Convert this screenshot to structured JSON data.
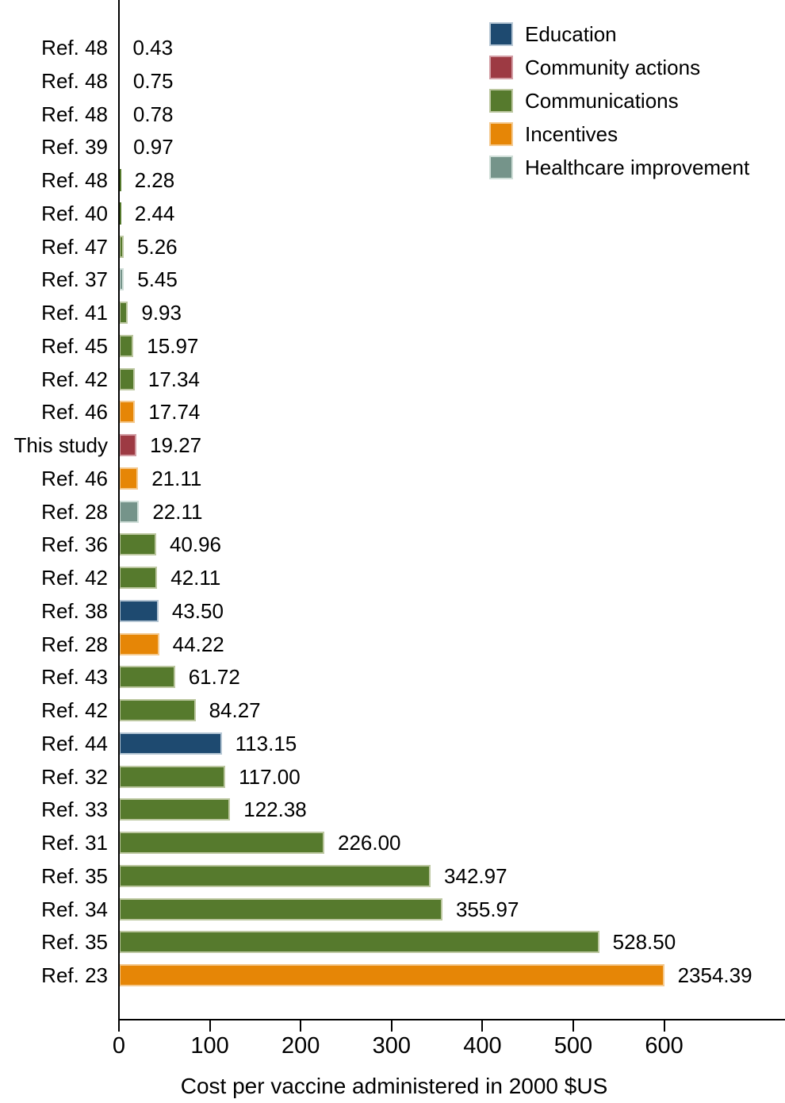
{
  "chart_data": {
    "type": "bar",
    "orientation": "horizontal",
    "title": "",
    "xlabel": "Cost per vaccine administered in 2000 $US",
    "ylabel": "",
    "axis": {
      "ticks": [
        0,
        100,
        200,
        300,
        400,
        500,
        600
      ],
      "xlim_shown": [
        0,
        600
      ],
      "grid": false
    },
    "bar_display_cap": 600,
    "legend": {
      "position": "top-right",
      "order": [
        "Education",
        "Community actions",
        "Communications",
        "Incentives",
        "Healthcare improvement"
      ]
    },
    "categories": {
      "Education": {
        "fill": "#1e4a70",
        "edge": "#b5c6d4"
      },
      "Community actions": {
        "fill": "#9d3a43",
        "edge": "#d29ca3"
      },
      "Communications": {
        "fill": "#567a2d",
        "edge": "#bcc7a0"
      },
      "Incentives": {
        "fill": "#e68606",
        "edge": "#f4c98e"
      },
      "Healthcare improvement": {
        "fill": "#75948a",
        "edge": "#cfded8"
      }
    },
    "bars": [
      {
        "label": "Ref. 48",
        "value": 0.43,
        "display": "0.43",
        "category": "Communications"
      },
      {
        "label": "Ref. 48",
        "value": 0.75,
        "display": "0.75",
        "category": "Communications"
      },
      {
        "label": "Ref. 48",
        "value": 0.78,
        "display": "0.78",
        "category": "Communications"
      },
      {
        "label": "Ref. 39",
        "value": 0.97,
        "display": "0.97",
        "category": "Communications"
      },
      {
        "label": "Ref. 48",
        "value": 2.28,
        "display": "2.28",
        "category": "Communications"
      },
      {
        "label": "Ref. 40",
        "value": 2.44,
        "display": "2.44",
        "category": "Communications"
      },
      {
        "label": "Ref. 47",
        "value": 5.26,
        "display": "5.26",
        "category": "Communications"
      },
      {
        "label": "Ref. 37",
        "value": 5.45,
        "display": "5.45",
        "category": "Healthcare improvement"
      },
      {
        "label": "Ref. 41",
        "value": 9.93,
        "display": "9.93",
        "category": "Communications"
      },
      {
        "label": "Ref. 45",
        "value": 15.97,
        "display": "15.97",
        "category": "Communications"
      },
      {
        "label": "Ref. 42",
        "value": 17.34,
        "display": "17.34",
        "category": "Communications"
      },
      {
        "label": "Ref. 46",
        "value": 17.74,
        "display": "17.74",
        "category": "Incentives"
      },
      {
        "label": "This study",
        "value": 19.27,
        "display": "19.27",
        "category": "Community actions"
      },
      {
        "label": "Ref. 46",
        "value": 21.11,
        "display": "21.11",
        "category": "Incentives"
      },
      {
        "label": "Ref. 28",
        "value": 22.11,
        "display": "22.11",
        "category": "Healthcare improvement"
      },
      {
        "label": "Ref. 36",
        "value": 40.96,
        "display": "40.96",
        "category": "Communications"
      },
      {
        "label": "Ref. 42",
        "value": 42.11,
        "display": "42.11",
        "category": "Communications"
      },
      {
        "label": "Ref. 38",
        "value": 43.5,
        "display": "43.50",
        "category": "Education"
      },
      {
        "label": "Ref. 28",
        "value": 44.22,
        "display": "44.22",
        "category": "Incentives"
      },
      {
        "label": "Ref. 43",
        "value": 61.72,
        "display": "61.72",
        "category": "Communications"
      },
      {
        "label": "Ref. 42",
        "value": 84.27,
        "display": "84.27",
        "category": "Communications"
      },
      {
        "label": "Ref. 44",
        "value": 113.15,
        "display": "113.15",
        "category": "Education"
      },
      {
        "label": "Ref. 32",
        "value": 117.0,
        "display": "117.00",
        "category": "Communications"
      },
      {
        "label": "Ref. 33",
        "value": 122.38,
        "display": "122.38",
        "category": "Communications"
      },
      {
        "label": "Ref. 31",
        "value": 226.0,
        "display": "226.00",
        "category": "Communications"
      },
      {
        "label": "Ref. 35",
        "value": 342.97,
        "display": "342.97",
        "category": "Communications"
      },
      {
        "label": "Ref. 34",
        "value": 355.97,
        "display": "355.97",
        "category": "Communications"
      },
      {
        "label": "Ref. 35",
        "value": 528.5,
        "display": "528.50",
        "category": "Communications"
      },
      {
        "label": "Ref. 23",
        "value": 2354.39,
        "display": "2354.39",
        "category": "Incentives"
      }
    ]
  }
}
